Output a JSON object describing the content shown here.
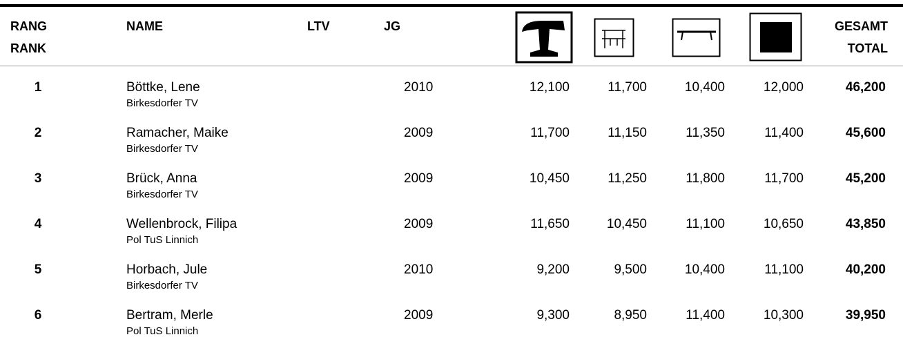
{
  "header": {
    "rank": [
      "RANG",
      "RANK"
    ],
    "name": "NAME",
    "ltv": "LTV",
    "jg": "JG",
    "total": [
      "GESAMT",
      "TOTAL"
    ]
  },
  "rows": [
    {
      "rank": 1,
      "name": "Böttke, Lene",
      "club": "Birkesdorfer TV",
      "jg": 2010,
      "scores": [
        "12,100",
        "11,700",
        "10,400",
        "12,000"
      ],
      "total": "46,200"
    },
    {
      "rank": 2,
      "name": "Ramacher, Maike",
      "club": "Birkesdorfer TV",
      "jg": 2009,
      "scores": [
        "11,700",
        "11,150",
        "11,350",
        "11,400"
      ],
      "total": "45,600"
    },
    {
      "rank": 3,
      "name": "Brück, Anna",
      "club": "Birkesdorfer TV",
      "jg": 2009,
      "scores": [
        "10,450",
        "11,250",
        "11,800",
        "11,700"
      ],
      "total": "45,200"
    },
    {
      "rank": 4,
      "name": "Wellenbrock, Filipa",
      "club": "Pol TuS Linnich",
      "jg": 2009,
      "scores": [
        "11,650",
        "10,450",
        "11,100",
        "10,650"
      ],
      "total": "43,850"
    },
    {
      "rank": 5,
      "name": "Horbach, Jule",
      "club": "Birkesdorfer TV",
      "jg": 2010,
      "scores": [
        "9,200",
        "9,500",
        "10,400",
        "11,100"
      ],
      "total": "40,200"
    },
    {
      "rank": 6,
      "name": "Bertram, Merle",
      "club": "Pol TuS Linnich",
      "jg": 2009,
      "scores": [
        "9,300",
        "8,950",
        "11,400",
        "10,300"
      ],
      "total": "39,950"
    }
  ]
}
